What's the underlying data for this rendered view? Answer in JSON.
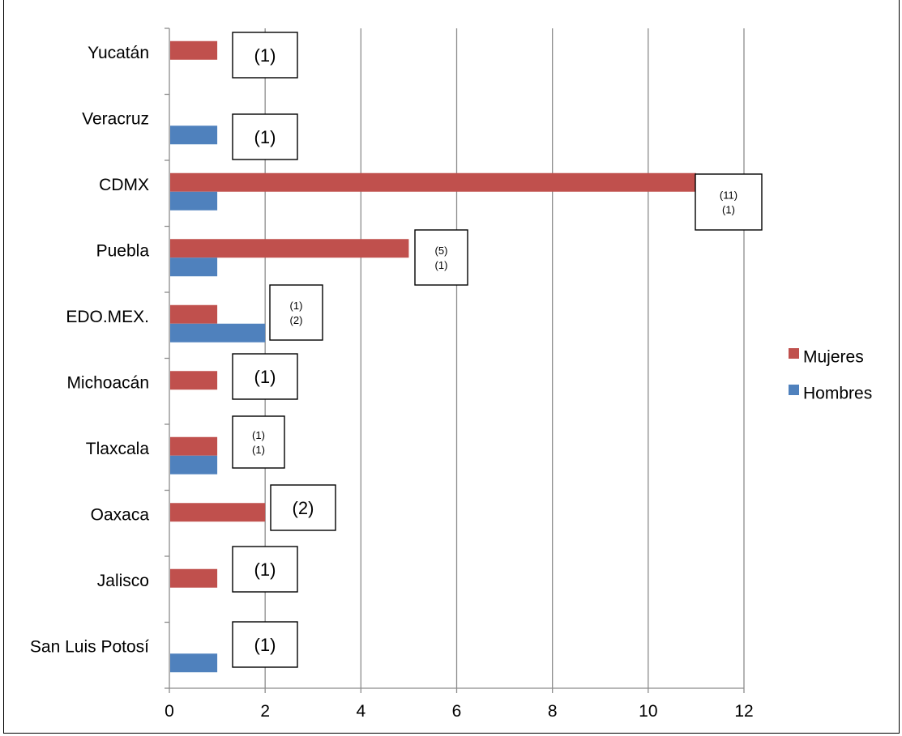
{
  "chart_data": {
    "type": "bar",
    "orientation": "horizontal",
    "categories": [
      "Yucatán",
      "Veracruz",
      "CDMX",
      "Puebla",
      "EDO.MEX.",
      "Michoacán",
      "Tlaxcala",
      "Oaxaca",
      "Jalisco",
      "San Luis Potosí"
    ],
    "series": [
      {
        "name": "Mujeres",
        "color": "#C0504D",
        "values": [
          1,
          0,
          11,
          5,
          1,
          1,
          1,
          2,
          1,
          0
        ]
      },
      {
        "name": "Hombres",
        "color": "#4F81BD",
        "values": [
          0,
          1,
          1,
          1,
          2,
          0,
          1,
          0,
          0,
          1
        ]
      }
    ],
    "xlim": [
      0,
      12
    ],
    "xticks": [
      "0",
      "2",
      "4",
      "6",
      "8",
      "10",
      "12"
    ],
    "xtick_values": [
      0,
      2,
      4,
      6,
      8,
      10,
      12
    ],
    "grid": "vertical",
    "legend": "right",
    "annotations": [
      {
        "category": "Yucatán",
        "lines": [
          "(1)"
        ]
      },
      {
        "category": "Veracruz",
        "lines": [
          "(1)"
        ]
      },
      {
        "category": "CDMX",
        "lines": [
          "(11)",
          "(1)"
        ]
      },
      {
        "category": "Puebla",
        "lines": [
          "(5)",
          "(1)"
        ]
      },
      {
        "category": "EDO.MEX.",
        "lines": [
          "(1)",
          "(2)"
        ]
      },
      {
        "category": "Michoacán",
        "lines": [
          "(1)"
        ]
      },
      {
        "category": "Tlaxcala",
        "lines": [
          "(1)",
          "(1)"
        ]
      },
      {
        "category": "Oaxaca",
        "lines": [
          "(2)"
        ]
      },
      {
        "category": "Jalisco",
        "lines": [
          "(1)"
        ]
      },
      {
        "category": "San Luis Potosí",
        "lines": [
          "(1)"
        ]
      }
    ]
  }
}
